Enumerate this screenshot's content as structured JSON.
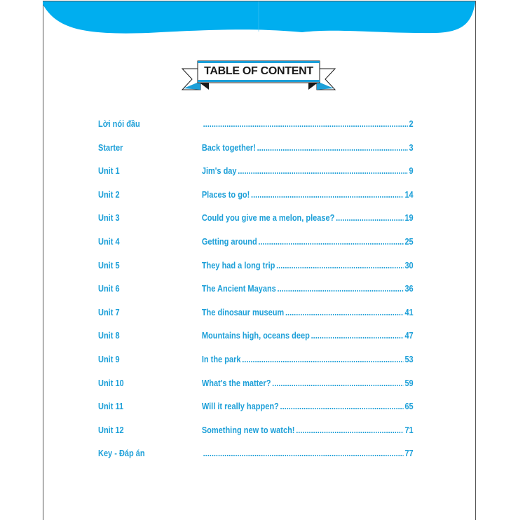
{
  "heading": "TABLE OF CONTENT",
  "colors": {
    "accent": "#00AEEF",
    "text": "#1C9FD8"
  },
  "entries": [
    {
      "label": "Lời nói đầu",
      "title": "",
      "page": "2"
    },
    {
      "label": "Starter",
      "title": "Back together!",
      "page": "3"
    },
    {
      "label": "Unit 1",
      "title": "Jim's day",
      "page": "9"
    },
    {
      "label": "Unit 2",
      "title": "Places to go!",
      "page": "14"
    },
    {
      "label": "Unit 3",
      "title": "Could you give me a melon, please?",
      "page": "19"
    },
    {
      "label": "Unit 4",
      "title": "Getting around",
      "page": "25"
    },
    {
      "label": "Unit 5",
      "title": "They had a long trip",
      "page": "30"
    },
    {
      "label": "Unit 6",
      "title": "The Ancient Mayans",
      "page": "36"
    },
    {
      "label": "Unit 7",
      "title": "The dinosaur museum",
      "page": "41"
    },
    {
      "label": "Unit 8",
      "title": "Mountains high, oceans deep",
      "page": "47"
    },
    {
      "label": "Unit 9",
      "title": "In the park",
      "page": "53"
    },
    {
      "label": "Unit 10",
      "title": "What's the matter?",
      "page": "59"
    },
    {
      "label": "Unit 11",
      "title": "Will it really happen?",
      "page": "65"
    },
    {
      "label": "Unit 12",
      "title": "Something new to watch!",
      "page": "71"
    },
    {
      "label": "Key - Đáp án",
      "title": "",
      "page": "77"
    }
  ]
}
